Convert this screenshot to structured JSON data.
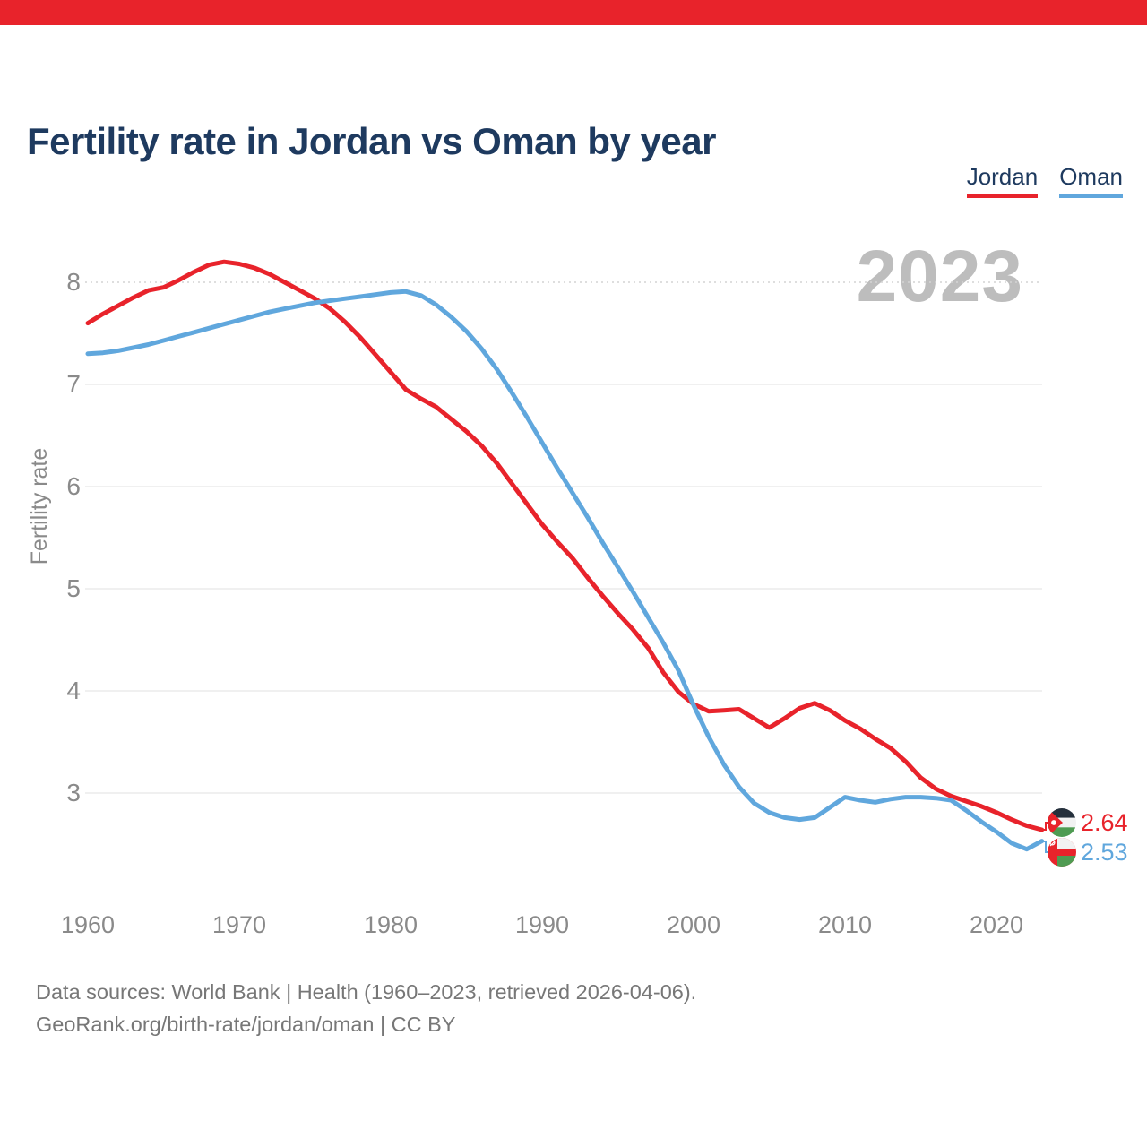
{
  "colors": {
    "topbar": "#e8232b",
    "jordan": "#e8232b",
    "oman": "#60a7dd",
    "title": "#1e3a5f",
    "axis": "#8a8a8a",
    "footer": "#777777",
    "watermark": "#bdbdbd",
    "grid": "#ececec",
    "grid_top": "#d4d4d4"
  },
  "header": {
    "title": "Fertility rate in Jordan vs Oman by year"
  },
  "legend": {
    "items": [
      {
        "label": "Jordan",
        "color": "#e8232b"
      },
      {
        "label": "Oman",
        "color": "#60a7dd"
      }
    ]
  },
  "watermark": "2023",
  "end_labels": {
    "jordan": "2.64",
    "oman": "2.53"
  },
  "icons": {
    "jordan_flag": "jordan-flag-icon",
    "oman_flag": "oman-flag-icon"
  },
  "footer": {
    "line1": "Data sources: World Bank | Health (1960–2023, retrieved 2026-04-06).",
    "line2": "GeoRank.org/birth-rate/jordan/oman | CC BY"
  },
  "chart_data": {
    "type": "line",
    "title": "Fertility rate in Jordan vs Oman by year",
    "xlabel": "",
    "ylabel": "Fertility rate",
    "x_start": 1960,
    "x_end": 2023,
    "x_ticks": [
      1960,
      1970,
      1980,
      1990,
      2000,
      2010,
      2020
    ],
    "y_ticks": [
      8,
      7,
      6,
      5,
      4,
      3
    ],
    "ylim": [
      2.0,
      8.5
    ],
    "grid": "horizontal",
    "legend_position": "top-right",
    "series": [
      {
        "name": "Jordan",
        "color": "#e8232b",
        "end_label": "2.64",
        "values": [
          7.6,
          7.69,
          7.77,
          7.85,
          7.92,
          7.95,
          8.02,
          8.1,
          8.17,
          8.2,
          8.18,
          8.14,
          8.08,
          8.0,
          7.92,
          7.84,
          7.74,
          7.61,
          7.46,
          7.29,
          7.12,
          6.95,
          6.86,
          6.78,
          6.66,
          6.54,
          6.4,
          6.23,
          6.03,
          5.83,
          5.63,
          5.46,
          5.3,
          5.11,
          4.93,
          4.76,
          4.6,
          4.42,
          4.18,
          3.99,
          3.87,
          3.8,
          3.81,
          3.82,
          3.73,
          3.64,
          3.73,
          3.83,
          3.88,
          3.81,
          3.71,
          3.63,
          3.53,
          3.44,
          3.31,
          3.15,
          3.04,
          2.97,
          2.92,
          2.87,
          2.81,
          2.74,
          2.68,
          2.64
        ]
      },
      {
        "name": "Oman",
        "color": "#60a7dd",
        "end_label": "2.53",
        "values": [
          7.3,
          7.31,
          7.33,
          7.36,
          7.39,
          7.43,
          7.47,
          7.51,
          7.55,
          7.59,
          7.63,
          7.67,
          7.71,
          7.74,
          7.77,
          7.8,
          7.82,
          7.84,
          7.86,
          7.88,
          7.9,
          7.91,
          7.87,
          7.78,
          7.66,
          7.52,
          7.35,
          7.15,
          6.92,
          6.68,
          6.43,
          6.18,
          5.94,
          5.7,
          5.45,
          5.21,
          4.97,
          4.72,
          4.47,
          4.2,
          3.86,
          3.55,
          3.28,
          3.06,
          2.9,
          2.81,
          2.76,
          2.74,
          2.76,
          2.86,
          2.96,
          2.93,
          2.91,
          2.94,
          2.96,
          2.96,
          2.95,
          2.93,
          2.83,
          2.72,
          2.62,
          2.51,
          2.45,
          2.53
        ]
      }
    ]
  }
}
